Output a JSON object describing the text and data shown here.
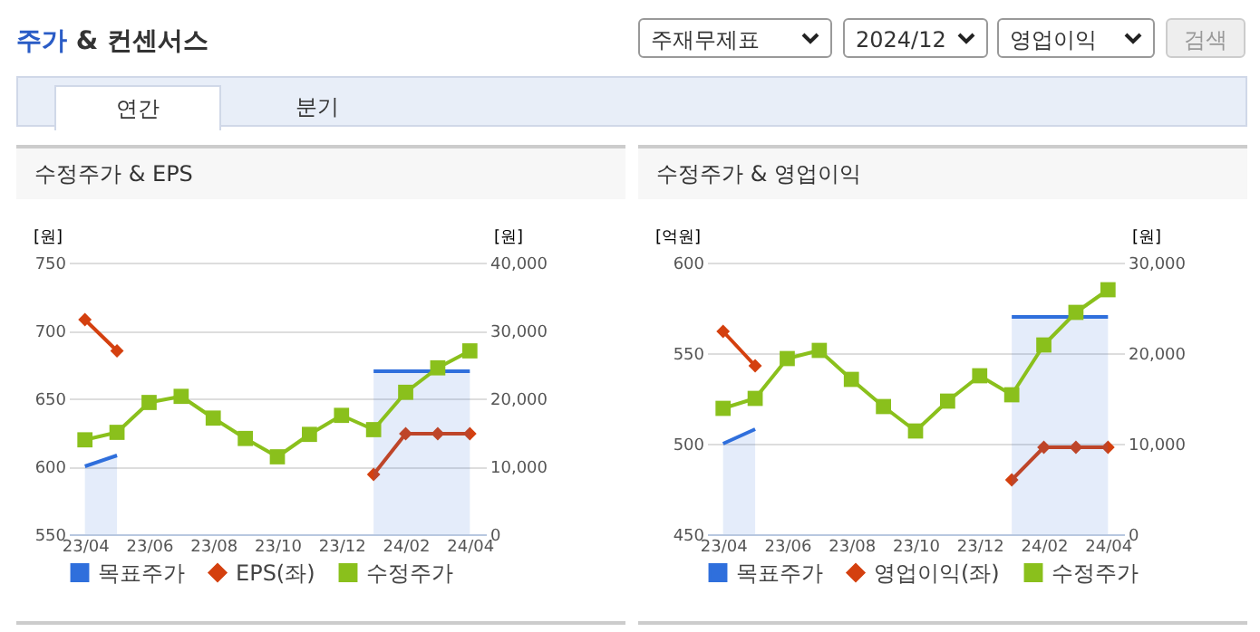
{
  "chart_data": [
    {
      "type": "line",
      "title": "수정주가 & EPS",
      "ylabel": "[원]",
      "y2label": "[원]",
      "categories": [
        "23/04",
        null,
        "23/06",
        null,
        "23/08",
        null,
        "23/10",
        null,
        "23/12",
        null,
        "24/02",
        null,
        "24/04"
      ],
      "ylim": [
        550,
        750
      ],
      "yticks": [
        550,
        600,
        650,
        700,
        750
      ],
      "y2lim": [
        0,
        40000
      ],
      "y2ticks": [
        0,
        {
          "value": 10000,
          "label": "10,000"
        },
        {
          "value": 20000,
          "label": "20,000"
        },
        {
          "value": 30000,
          "label": "30,000"
        },
        {
          "value": 40000,
          "label": "40,000"
        }
      ],
      "grid": "y",
      "legend": "bottom",
      "annotations": [
        "주가 & 컨센서스",
        "주재무제표",
        "2024/12",
        "영업이익",
        "검색",
        "연간",
        "분기"
      ],
      "series": [
        {
          "name": "목표주가",
          "type": "area",
          "axis": "y2",
          "color": "#2f6fdc",
          "values": [
            10000,
            11600,
            null,
            null,
            null,
            null,
            null,
            null,
            null,
            24000,
            24000,
            24000,
            24000
          ]
        },
        {
          "name": "EPS(좌)",
          "color": "#d4400f",
          "marker": "diamond",
          "values": [
            708,
            685,
            null,
            null,
            null,
            null,
            null,
            null,
            null,
            594,
            624,
            624,
            624
          ]
        },
        {
          "name": "수정주가",
          "axis": "y2",
          "color": "#8ac01c",
          "marker": "square",
          "values": [
            13900,
            15000,
            19400,
            20300,
            17100,
            14100,
            11400,
            14700,
            17500,
            15400,
            20900,
            24500,
            27000
          ]
        }
      ]
    },
    {
      "type": "line",
      "title": "수정주가 & 영업이익",
      "ylabel": "[억원]",
      "y2label": "[원]",
      "categories": [
        "23/04",
        null,
        "23/06",
        null,
        "23/08",
        null,
        "23/10",
        null,
        "23/12",
        null,
        "24/02",
        null,
        "24/04"
      ],
      "ylim": [
        450,
        600
      ],
      "yticks": [
        450,
        500,
        550,
        600
      ],
      "y2lim": [
        0,
        30000
      ],
      "y2ticks": [
        0,
        {
          "value": 10000,
          "label": "10,000"
        },
        {
          "value": 20000,
          "label": "20,000"
        },
        {
          "value": 30000,
          "label": "30,000"
        }
      ],
      "grid": "y",
      "legend": "bottom",
      "series": [
        {
          "name": "목표주가",
          "type": "area",
          "axis": "y2",
          "color": "#2f6fdc",
          "values": [
            10000,
            11600,
            null,
            null,
            null,
            null,
            null,
            null,
            null,
            24000,
            24000,
            24000,
            24000
          ]
        },
        {
          "name": "영업이익(좌)",
          "color": "#d4400f",
          "marker": "diamond",
          "values": [
            562,
            543,
            null,
            null,
            null,
            null,
            null,
            null,
            null,
            480,
            498,
            498,
            498
          ]
        },
        {
          "name": "수정주가",
          "axis": "y2",
          "color": "#8ac01c",
          "marker": "square",
          "values": [
            13900,
            15000,
            19400,
            20300,
            17100,
            14100,
            11400,
            14700,
            17500,
            15400,
            20900,
            24500,
            27000
          ]
        }
      ]
    }
  ]
}
